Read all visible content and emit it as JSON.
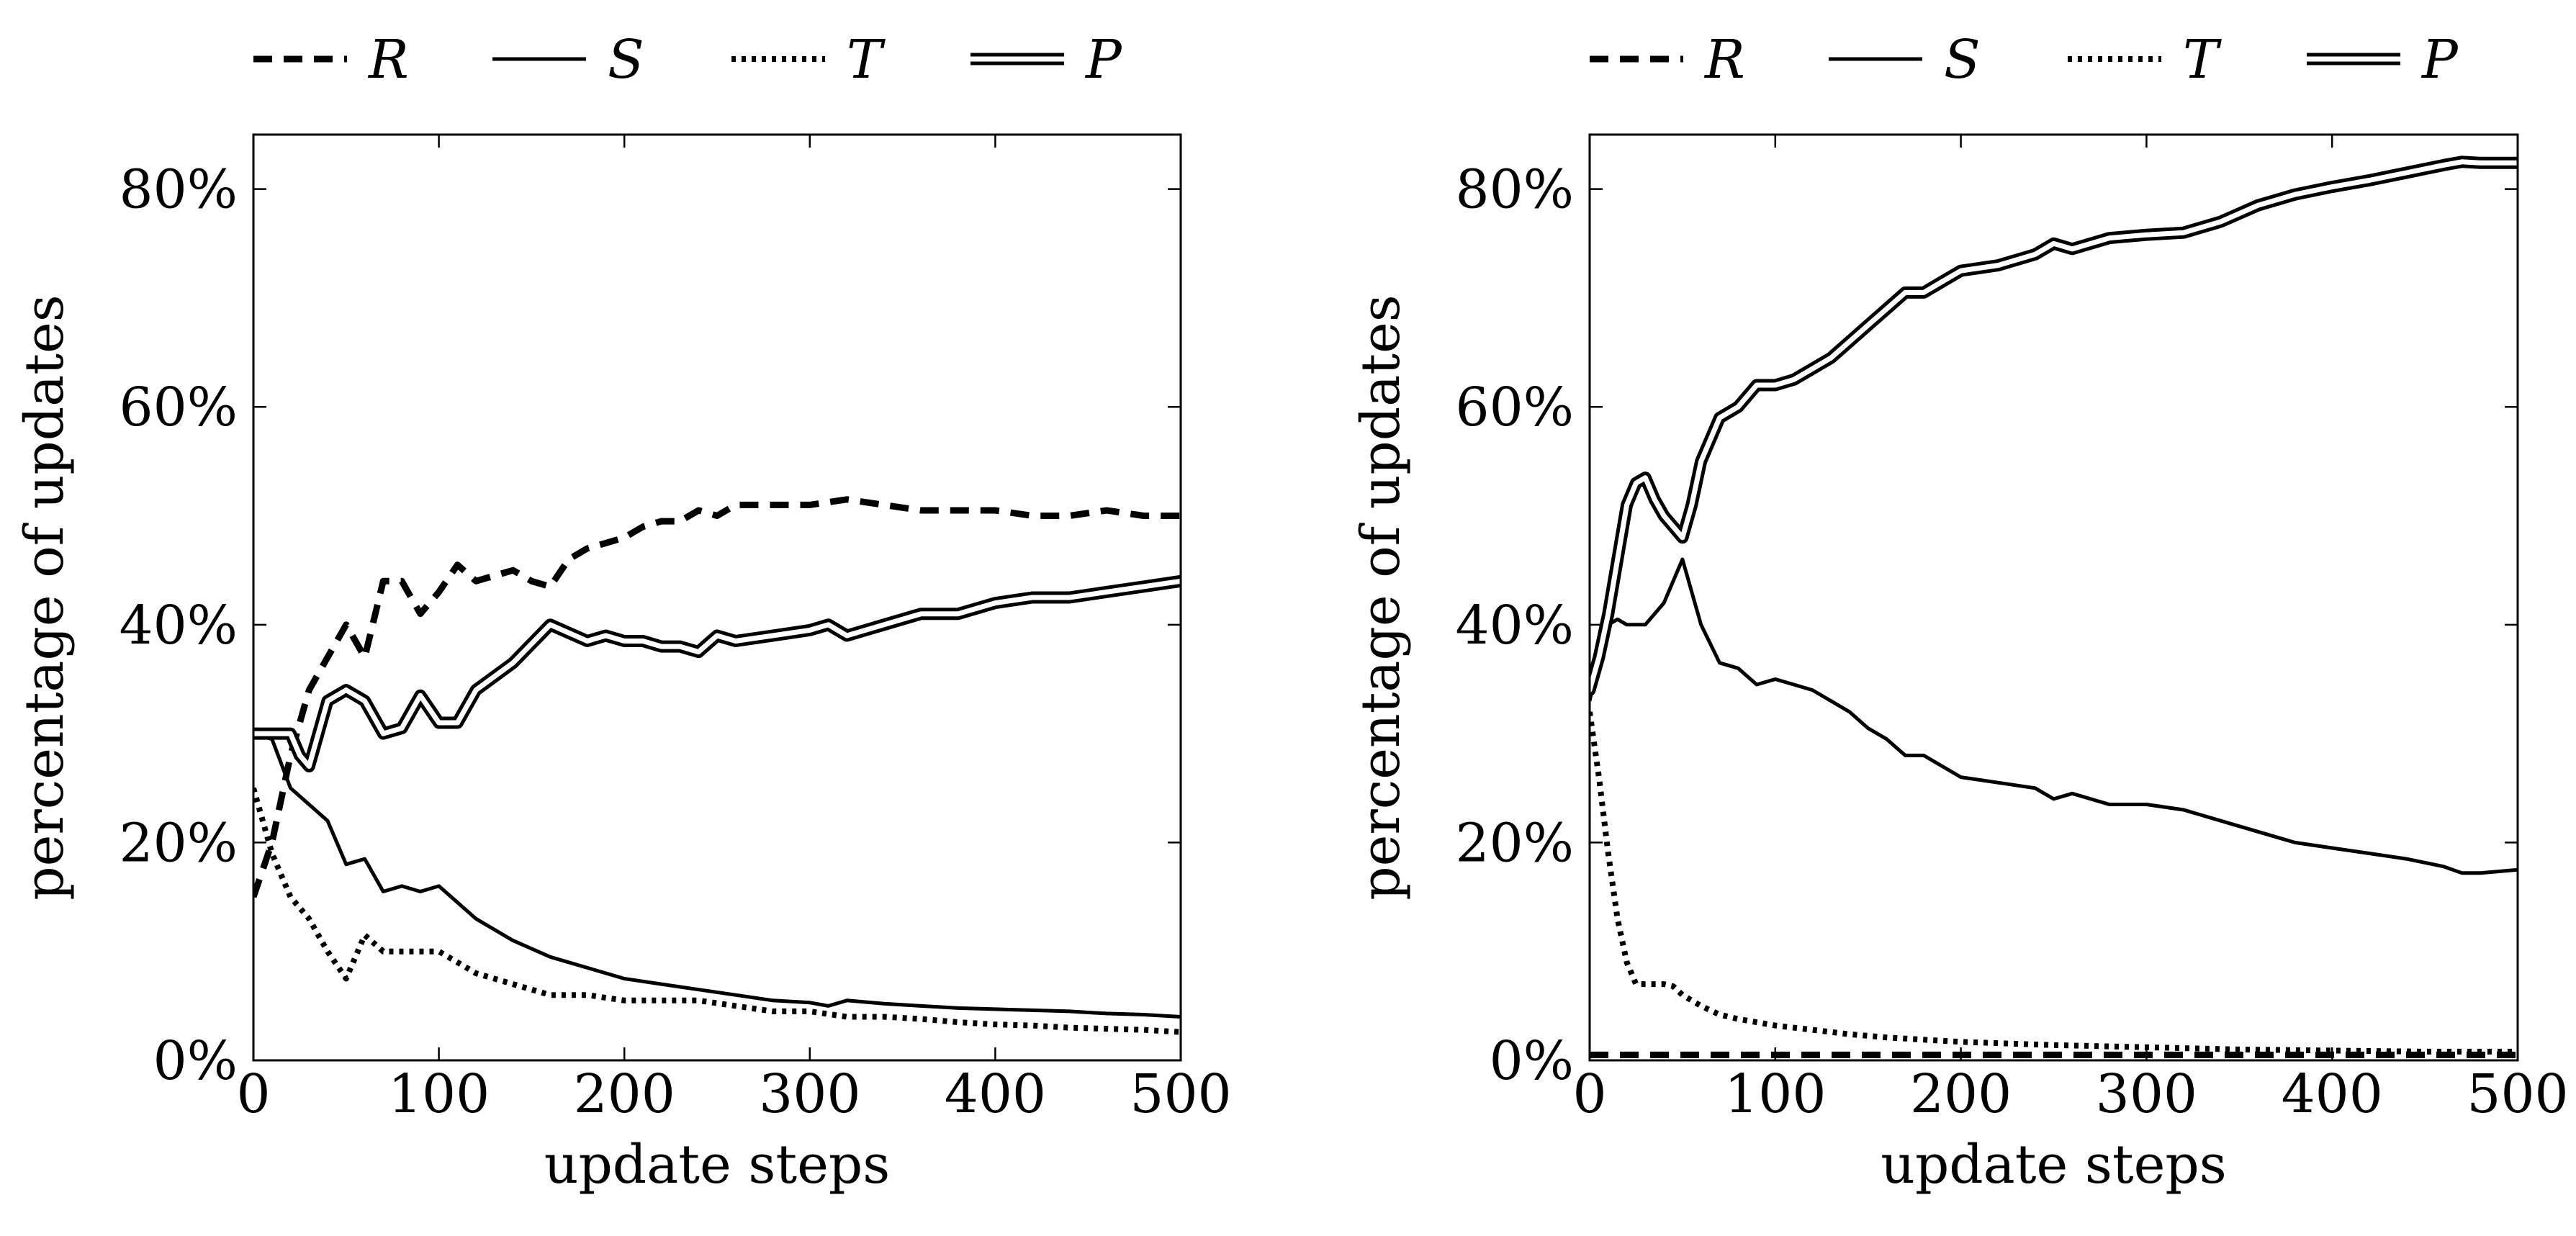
{
  "chart_data": [
    {
      "type": "line",
      "xlabel": "update steps",
      "ylabel": "percentage of updates",
      "xlim": [
        0,
        500
      ],
      "ylim": [
        0,
        85
      ],
      "xticks": [
        "0",
        "100",
        "200",
        "300",
        "400",
        "500"
      ],
      "yticks": [
        "0%",
        "20%",
        "40%",
        "60%",
        "80%"
      ],
      "grid": false,
      "legend": "top",
      "series": [
        {
          "name": "R",
          "style": "dashed",
          "x": [
            0,
            10,
            20,
            30,
            40,
            50,
            60,
            70,
            80,
            90,
            100,
            110,
            120,
            130,
            140,
            150,
            160,
            170,
            180,
            190,
            200,
            210,
            220,
            230,
            240,
            250,
            260,
            270,
            280,
            290,
            300,
            320,
            340,
            360,
            380,
            400,
            420,
            440,
            460,
            480,
            500
          ],
          "values": [
            15,
            20,
            28,
            34,
            37,
            40,
            37,
            44,
            44,
            41,
            43,
            45.5,
            44,
            44.5,
            45,
            44,
            43.5,
            46,
            47,
            47.5,
            48,
            49,
            49.5,
            49.5,
            50.5,
            50,
            51,
            51,
            51,
            51,
            51,
            51.5,
            51,
            50.5,
            50.5,
            50.5,
            50,
            50,
            50.5,
            50,
            50
          ]
        },
        {
          "name": "S",
          "style": "solid",
          "x": [
            0,
            10,
            20,
            30,
            40,
            50,
            60,
            70,
            80,
            90,
            100,
            110,
            120,
            140,
            160,
            180,
            200,
            220,
            240,
            260,
            280,
            300,
            310,
            320,
            340,
            360,
            380,
            400,
            420,
            440,
            460,
            480,
            500
          ],
          "values": [
            30,
            29.5,
            25,
            23.5,
            22,
            18,
            18.5,
            15.5,
            16,
            15.5,
            16,
            14.5,
            13,
            11,
            9.5,
            8.5,
            7.5,
            7,
            6.5,
            6,
            5.5,
            5.3,
            5,
            5.5,
            5.2,
            5,
            4.8,
            4.7,
            4.6,
            4.5,
            4.3,
            4.2,
            4
          ]
        },
        {
          "name": "T",
          "style": "dotted",
          "x": [
            0,
            10,
            20,
            30,
            40,
            50,
            60,
            70,
            80,
            90,
            100,
            110,
            120,
            140,
            160,
            180,
            200,
            220,
            240,
            260,
            280,
            300,
            320,
            340,
            360,
            380,
            400,
            420,
            440,
            460,
            480,
            500
          ],
          "values": [
            25,
            19,
            15,
            13,
            10,
            7.5,
            11.5,
            10,
            10,
            10,
            10,
            9,
            8,
            7,
            6,
            6,
            5.5,
            5.5,
            5.5,
            5,
            4.5,
            4.5,
            4,
            4,
            3.8,
            3.5,
            3.3,
            3.2,
            3,
            2.9,
            2.8,
            2.6
          ]
        },
        {
          "name": "P",
          "style": "double",
          "x": [
            0,
            10,
            20,
            25,
            30,
            40,
            50,
            60,
            70,
            80,
            90,
            100,
            110,
            120,
            140,
            160,
            180,
            190,
            200,
            210,
            220,
            230,
            240,
            250,
            260,
            280,
            300,
            310,
            320,
            340,
            360,
            380,
            400,
            420,
            440,
            460,
            480,
            500
          ],
          "values": [
            30,
            30,
            30,
            28,
            27,
            33,
            34,
            33,
            30,
            30.5,
            33.5,
            31,
            31,
            34,
            36.5,
            40,
            38.5,
            39,
            38.5,
            38.5,
            38,
            38,
            37.5,
            39,
            38.5,
            39,
            39.5,
            40,
            39,
            40,
            41,
            41,
            42,
            42.5,
            42.5,
            43,
            43.5,
            44
          ]
        }
      ]
    },
    {
      "type": "line",
      "xlabel": "update steps",
      "ylabel": "percentage of updates",
      "xlim": [
        0,
        500
      ],
      "ylim": [
        0,
        85
      ],
      "xticks": [
        "0",
        "100",
        "200",
        "300",
        "400",
        "500"
      ],
      "yticks": [
        "0%",
        "20%",
        "40%",
        "60%",
        "80%"
      ],
      "grid": false,
      "legend": "top",
      "series": [
        {
          "name": "R",
          "style": "dashed",
          "x": [
            0,
            100,
            200,
            300,
            400,
            500
          ],
          "values": [
            0.5,
            0.5,
            0.5,
            0.5,
            0.5,
            0.5
          ]
        },
        {
          "name": "S",
          "style": "solid",
          "x": [
            0,
            5,
            10,
            15,
            20,
            30,
            40,
            50,
            55,
            60,
            70,
            80,
            90,
            100,
            110,
            120,
            130,
            140,
            150,
            160,
            170,
            180,
            190,
            200,
            220,
            240,
            250,
            260,
            280,
            300,
            320,
            340,
            360,
            380,
            400,
            420,
            440,
            460,
            470,
            480,
            500
          ],
          "values": [
            33,
            37,
            40,
            40.5,
            40,
            40,
            42,
            46,
            43,
            40,
            36.5,
            36,
            34.5,
            35,
            34.5,
            34,
            33,
            32,
            30.5,
            29.5,
            28,
            28,
            27,
            26,
            25.5,
            25,
            24,
            24.5,
            23.5,
            23.5,
            23,
            22,
            21,
            20,
            19.5,
            19,
            18.5,
            17.8,
            17.2,
            17.2,
            17.5
          ]
        },
        {
          "name": "T",
          "style": "dotted",
          "x": [
            0,
            5,
            10,
            15,
            20,
            25,
            30,
            40,
            45,
            50,
            60,
            70,
            80,
            100,
            120,
            140,
            160,
            180,
            200,
            250,
            300,
            350,
            400,
            450,
            500
          ],
          "values": [
            32,
            26,
            19,
            13,
            9,
            7,
            7,
            7,
            6.8,
            6,
            5,
            4.2,
            3.8,
            3.2,
            2.8,
            2.4,
            2.1,
            1.9,
            1.7,
            1.4,
            1.2,
            1.0,
            0.9,
            0.8,
            0.8
          ]
        },
        {
          "name": "P",
          "style": "double",
          "x": [
            0,
            5,
            10,
            15,
            20,
            25,
            30,
            35,
            40,
            50,
            55,
            60,
            70,
            80,
            90,
            100,
            110,
            120,
            130,
            140,
            150,
            160,
            170,
            180,
            190,
            200,
            220,
            240,
            250,
            260,
            280,
            300,
            320,
            340,
            360,
            380,
            400,
            420,
            440,
            460,
            470,
            480,
            500
          ],
          "values": [
            34,
            37,
            41,
            46,
            51,
            53,
            53.5,
            51.5,
            50,
            48,
            51,
            55,
            59,
            60,
            62,
            62,
            62.5,
            63.5,
            64.5,
            66,
            67.5,
            69,
            70.5,
            70.5,
            71.5,
            72.5,
            73,
            74,
            75,
            74.5,
            75.5,
            75.8,
            76,
            77,
            78.5,
            79.5,
            80.2,
            80.8,
            81.5,
            82.2,
            82.5,
            82.4,
            82.4
          ]
        }
      ]
    }
  ]
}
